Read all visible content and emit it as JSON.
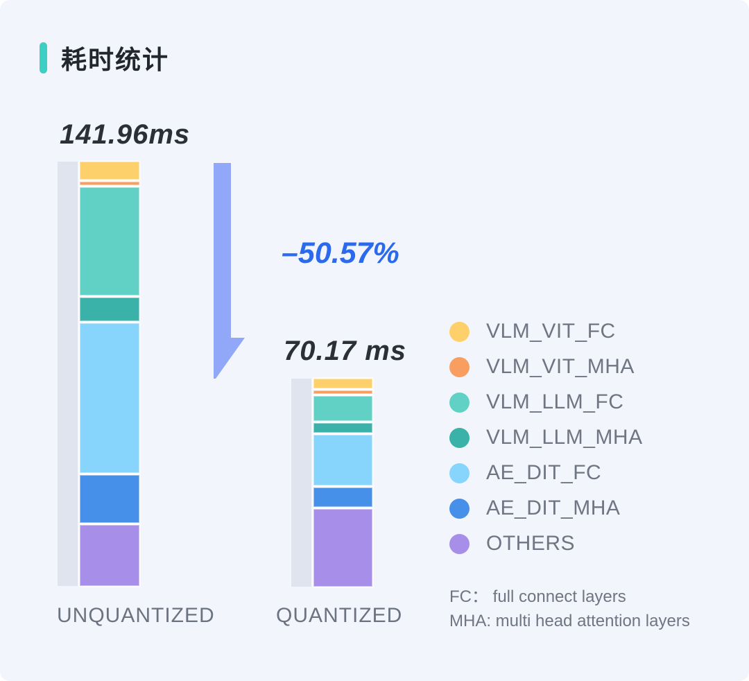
{
  "header": {
    "title": "耗时统计"
  },
  "colors": {
    "background": "#F2F5FB",
    "accent_bar": "#3DCEC4",
    "shadow_bar": "#E0E4EE",
    "arrow": "#91A7F7",
    "percent_text": "#2B6AEC"
  },
  "chart_data": {
    "type": "bar",
    "variant": "stacked-vertical",
    "title": "耗时统计",
    "units": "ms",
    "categories": [
      "UNQUANTIZED",
      "QUANTIZED"
    ],
    "totals_ms": [
      141.96,
      70.17
    ],
    "total_labels": [
      "141.96ms",
      "70.17 ms"
    ],
    "change_percent": -50.57,
    "change_label": "–50.57%",
    "stack_order": "top-to-bottom",
    "legend_position": "right",
    "series": [
      {
        "name": "VLM_VIT_FC",
        "color": "#FDD06C",
        "values": [
          6.2,
          3.5
        ]
      },
      {
        "name": "VLM_VIT_MHA",
        "color": "#F99E61",
        "values": [
          1.2,
          1.3
        ]
      },
      {
        "name": "VLM_LLM_FC",
        "color": "#61D1C5",
        "values": [
          37.3,
          8.9
        ]
      },
      {
        "name": "VLM_LLM_MHA",
        "color": "#3AB1A9",
        "values": [
          8.1,
          3.5
        ]
      },
      {
        "name": "AE_DIT_FC",
        "color": "#87D5FD",
        "values": [
          51.6,
          18.2
        ]
      },
      {
        "name": "AE_DIT_MHA",
        "color": "#4690E9",
        "values": [
          16.5,
          6.9
        ]
      },
      {
        "name": "OTHERS",
        "color": "#A78FE9",
        "values": [
          21.0,
          27.9
        ]
      }
    ],
    "footnotes": [
      "FC： full connect layers",
      "MHA: multi head attention layers"
    ]
  }
}
